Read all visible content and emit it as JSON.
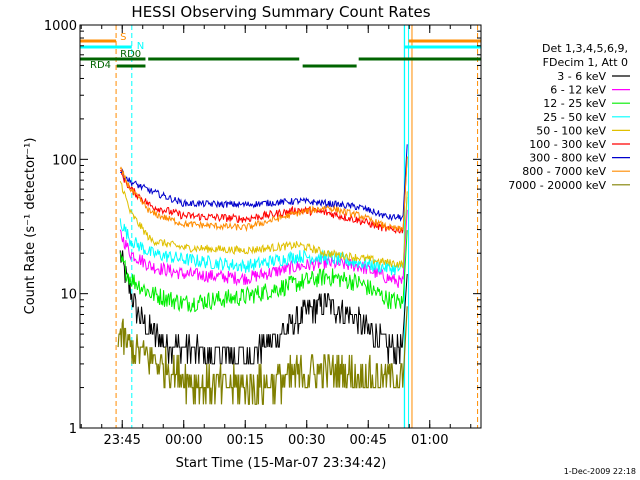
{
  "chart_data": {
    "type": "line",
    "title": "HESSI Observing Summary Count Rates",
    "xlabel": "Start Time (15-Mar-07 23:34:42)",
    "ylabel": "Count Rate (s⁻¹ detector⁻¹)",
    "yscale": "log",
    "ylim": [
      1,
      1000
    ],
    "xlim": [
      "23:34:42",
      "01:12:30"
    ],
    "x_ticks": [
      "23:45",
      "00:00",
      "00:15",
      "00:30",
      "00:45",
      "01:00"
    ],
    "y_ticks": [
      "1",
      "10",
      "100",
      "1000"
    ],
    "legend_header": [
      "Det 1,3,4,5,6,9,",
      "FDecim 1, Att 0"
    ],
    "legend_position": "right",
    "footer": "1-Dec-2009 22:18",
    "series": [
      {
        "name": "3 - 6 keV",
        "color": "#000000",
        "x": [
          "23:44:30",
          "23:47:00",
          "23:50:00",
          "23:55:00",
          "00:05:00",
          "00:15:00",
          "00:22:00",
          "00:30:00",
          "00:35:00",
          "00:42:00",
          "00:50:00",
          "00:53:30"
        ],
        "values": [
          20,
          10,
          6,
          4.3,
          3.5,
          3.5,
          4.5,
          7.5,
          8.5,
          6.5,
          4,
          4
        ]
      },
      {
        "name": "6 - 12 keV",
        "color": "#ff00ff",
        "x": [
          "23:44:30",
          "23:47:00",
          "23:52:00",
          "00:00:00",
          "00:15:00",
          "00:28:00",
          "00:35:00",
          "00:43:00",
          "00:50:00",
          "00:53:30"
        ],
        "values": [
          28,
          20,
          16,
          14,
          13,
          16,
          17,
          16,
          13,
          12
        ]
      },
      {
        "name": "12 - 25 keV",
        "color": "#00ee00",
        "x": [
          "23:44:30",
          "23:47:00",
          "23:52:00",
          "00:00:00",
          "00:15:00",
          "00:28:00",
          "00:35:00",
          "00:43:00",
          "00:50:00",
          "00:53:30"
        ],
        "values": [
          18,
          13,
          10,
          8.5,
          9.5,
          12,
          13.5,
          12,
          9,
          8.5
        ]
      },
      {
        "name": "25 - 50 keV",
        "color": "#00ffff",
        "x": [
          "23:44:30",
          "23:47:00",
          "23:52:00",
          "00:00:00",
          "00:15:00",
          "00:28:00",
          "00:35:00",
          "00:43:00",
          "00:50:00",
          "00:53:30"
        ],
        "values": [
          35,
          25,
          20,
          18,
          16,
          19,
          18.5,
          17,
          15.5,
          15
        ]
      },
      {
        "name": "50 - 100 keV",
        "color": "#e0c000",
        "x": [
          "23:44:30",
          "23:47:00",
          "23:52:00",
          "00:00:00",
          "00:15:00",
          "00:28:00",
          "00:35:00",
          "00:43:00",
          "00:50:00",
          "00:53:30"
        ],
        "values": [
          70,
          40,
          25,
          22,
          21,
          23,
          20,
          18.5,
          17,
          16.5
        ]
      },
      {
        "name": "100 - 300 keV",
        "color": "#ff0000",
        "x": [
          "23:44:30",
          "23:47:00",
          "23:52:00",
          "00:00:00",
          "00:15:00",
          "00:28:00",
          "00:35:00",
          "00:43:00",
          "00:50:00",
          "00:53:30"
        ],
        "values": [
          80,
          60,
          45,
          38,
          36,
          42,
          40,
          35,
          30,
          30
        ]
      },
      {
        "name": "300 - 800 keV",
        "color": "#0000cc",
        "x": [
          "23:44:30",
          "23:47:00",
          "23:52:00",
          "00:00:00",
          "00:15:00",
          "00:28:00",
          "00:35:00",
          "00:43:00",
          "00:50:00",
          "00:53:30"
        ],
        "values": [
          82,
          68,
          58,
          47,
          46,
          49,
          47,
          44,
          37,
          37
        ]
      },
      {
        "name": "800 - 7000 keV",
        "color": "#ff8c00",
        "x": [
          "23:44:30",
          "23:47:00",
          "23:52:00",
          "00:00:00",
          "00:15:00",
          "00:28:00",
          "00:35:00",
          "00:43:00",
          "00:50:00",
          "00:53:30"
        ],
        "values": [
          85,
          60,
          40,
          33,
          31,
          40,
          44,
          38,
          31,
          30
        ]
      },
      {
        "name": "7000 - 20000 keV",
        "color": "#808000",
        "x": [
          "23:44:00",
          "23:47:00",
          "23:52:00",
          "23:58:00",
          "00:05:00",
          "00:15:00",
          "00:22:00",
          "00:28:00",
          "00:35:00",
          "00:42:00",
          "00:48:00",
          "00:53:30"
        ],
        "values": [
          5,
          4,
          3.3,
          2.6,
          2.1,
          2.0,
          2.2,
          2.5,
          2.7,
          2.5,
          2.3,
          2.3
        ]
      }
    ],
    "flags": [
      {
        "label": "S",
        "color": "#ff8c00"
      },
      {
        "label": "N",
        "color": "#00ffff"
      },
      {
        "label": "RD0",
        "color": "#006400"
      },
      {
        "label": "RD4",
        "color": "#006400"
      }
    ]
  }
}
